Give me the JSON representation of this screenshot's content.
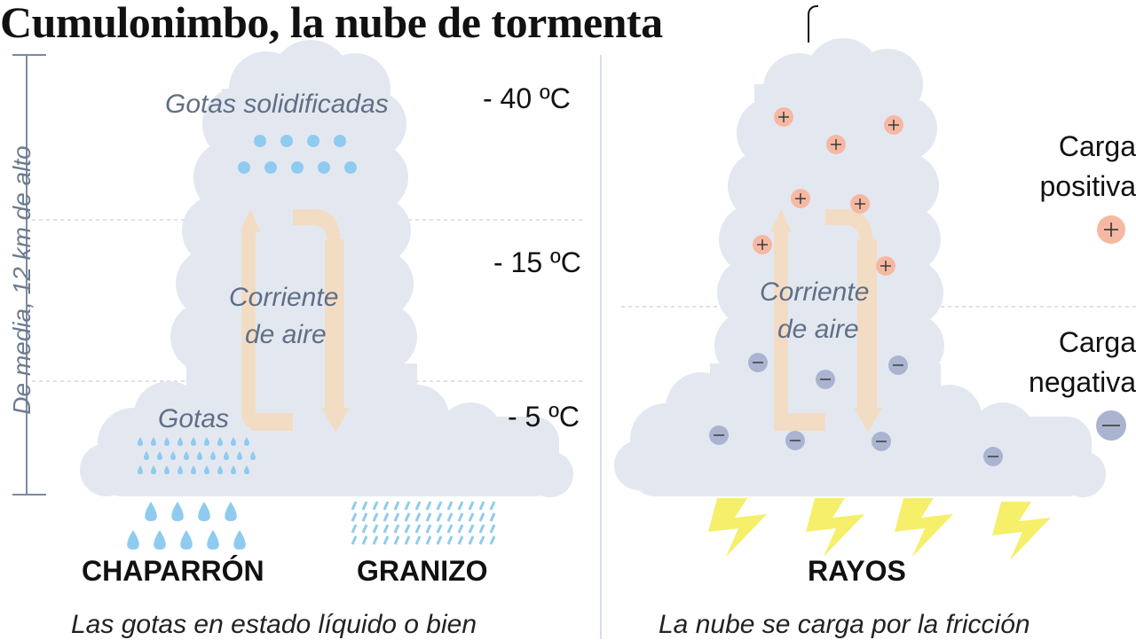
{
  "title": "Cumulonimbo, la nube de tormenta",
  "axis_label": "De media, 12 km de alto",
  "temperatures": [
    "- 40 ºC",
    "- 15 ºC",
    "- 5 ºC"
  ],
  "left_cloud": {
    "frozen_label": "Gotas solidificadas",
    "current_label_line1": "Corriente",
    "current_label_line2": "de aire",
    "drops_label": "Gotas"
  },
  "right_cloud": {
    "current_label_line1": "Corriente",
    "current_label_line2": "de aire"
  },
  "legend": {
    "positive_line1": "Carga",
    "positive_line2": "positiva",
    "negative_line1": "Carga",
    "negative_line2": "negativa"
  },
  "bottom_labels": {
    "shower": "CHAPARRÓN",
    "hail": "GRANIZO",
    "lightning": "RAYOS"
  },
  "captions": {
    "left": "Las gotas en estado líquido o bien",
    "right": "La nube se carga por la fricción"
  },
  "colors": {
    "cloud": "#e3e8f0",
    "arrow": "#f3dcc4",
    "drop": "#8fcbef",
    "positive": "#f6b8a2",
    "negative": "#aab4d0",
    "lightning": "#f5ef6a",
    "label": "#5f6f86"
  },
  "icons": [
    "positive-charge-icon",
    "negative-charge-icon",
    "lightning-icon",
    "raindrop-icon",
    "hail-icon",
    "airflow-arrow-icon"
  ]
}
